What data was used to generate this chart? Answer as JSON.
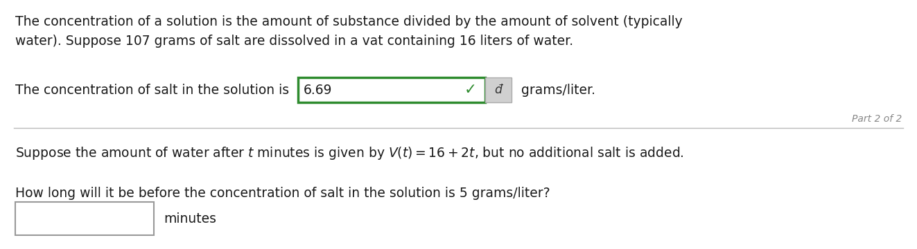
{
  "bg_color": "#ffffff",
  "line1": "The concentration of a solution is the amount of substance divided by the amount of solvent (typically",
  "line2": "water). Suppose 107 grams of salt are dissolved in a vat containing 16 liters of water.",
  "line3_prefix": "The concentration of salt in the solution is",
  "line3_value": "6.69",
  "line3_suffix": "grams/liter.",
  "part_label": "Part 2 of 2",
  "line4": "Suppose the amount of water after $t$ minutes is given by $V(t) = 16 + 2t$, but no additional salt is added.",
  "line5": "How long will it be before the concentration of salt in the solution is 5 grams/liter?",
  "line6_suffix": "minutes",
  "font_size_main": 13.5,
  "font_size_part": 10,
  "text_color": "#1a1a1a",
  "input_box_color_green": "#2e8b2e",
  "input_box_fill": "#ffffff",
  "check_color": "#2e8b2e",
  "edit_btn_color": "#d0d0d0",
  "divider_color": "#bbbbbb",
  "empty_box_color": "#999999",
  "part_label_color": "#888888"
}
